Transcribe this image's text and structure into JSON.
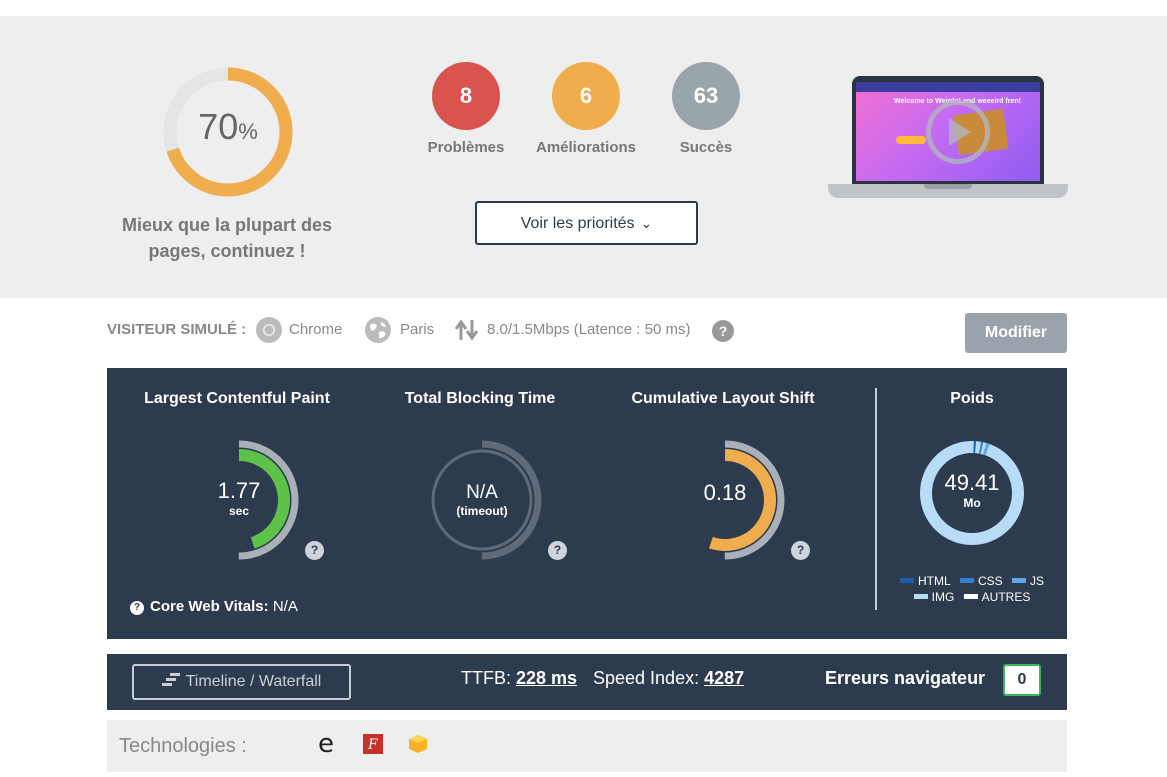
{
  "summary": {
    "score_value": "70",
    "score_unit": "%",
    "score_fraction": 0.7,
    "caption_line1": "Mieux que la plupart des",
    "caption_line2": "pages, continuez !",
    "problems": {
      "count": "8",
      "label": "Problèmes",
      "color": "#d9534f"
    },
    "improvements": {
      "count": "6",
      "label": "Améliorations",
      "color": "#f0ad4e"
    },
    "successes": {
      "count": "63",
      "label": "Succès",
      "color": "#9aa5ab"
    },
    "priorities_button": "Voir les priorités"
  },
  "visitor": {
    "label": "VISITEUR SIMULÉ :",
    "browser": "Chrome",
    "location": "Paris",
    "connection": "8.0/1.5Mbps (Latence : 50 ms)",
    "modify_button": "Modifier"
  },
  "metrics": {
    "lcp": {
      "title": "Largest Contentful Paint",
      "value": "1.77",
      "unit": "sec",
      "fill_fraction": 0.45,
      "color": "#5cc24a"
    },
    "tbt": {
      "title": "Total Blocking Time",
      "value": "N/A",
      "unit": "(timeout)"
    },
    "cls": {
      "title": "Cumulative Layout Shift",
      "value": "0.18",
      "fill_fraction": 0.55,
      "color": "#f0ad4e"
    },
    "weight": {
      "title": "Poids",
      "value": "49.41",
      "unit": "Mo"
    },
    "core_web_vitals_label": "Core Web Vitals:",
    "core_web_vitals_value": "N/A",
    "legend": [
      {
        "label": "HTML",
        "color": "#1b5fa8"
      },
      {
        "label": "CSS",
        "color": "#2f7fd4"
      },
      {
        "label": "JS",
        "color": "#5ea6e8"
      },
      {
        "label": "IMG",
        "color": "#b8dcf8"
      },
      {
        "label": "AUTRES",
        "color": "#ffffff"
      }
    ],
    "help": "?"
  },
  "bottom": {
    "timeline_button": "Timeline / Waterfall",
    "ttfb_label": "TTFB:",
    "ttfb_value": "228 ms",
    "speed_label": "Speed Index:",
    "speed_value": "4287",
    "errors_label": "Erreurs navigateur",
    "errors_count": "0"
  },
  "technologies": {
    "label": "Technologies :",
    "icons": [
      "edge-icon",
      "font-awesome-icon",
      "package-icon"
    ]
  },
  "laptop_preview": {
    "site_title": "Welcome to WeirdoLand weeeird fren!"
  }
}
